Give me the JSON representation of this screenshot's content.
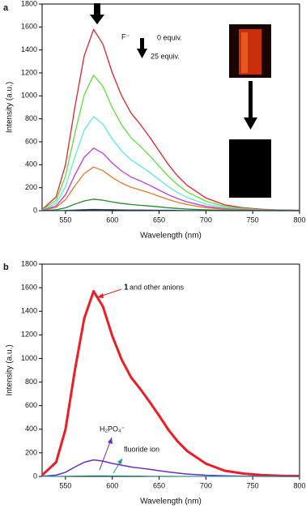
{
  "chart_data": [
    {
      "type": "line",
      "panel_label": "a",
      "x_label": "Wavelength (nm)",
      "y_label": "Intensity (a.u.)",
      "annotations": [
        "F⁻",
        "0 equiv.",
        "25 equiv."
      ],
      "x": [
        525,
        540,
        550,
        560,
        570,
        580,
        590,
        600,
        610,
        620,
        630,
        640,
        650,
        660,
        670,
        680,
        700,
        720,
        740,
        760,
        780,
        800
      ],
      "xlim": [
        525,
        800
      ],
      "xticks": [
        550,
        600,
        650,
        700,
        750,
        800
      ],
      "ylim": [
        0,
        1800
      ],
      "yticks": [
        0,
        200,
        400,
        600,
        800,
        1000,
        1200,
        1400,
        1600,
        1800
      ],
      "series": [
        {
          "color": "#e8202a",
          "values": [
            10,
            120,
            400,
            900,
            1350,
            1580,
            1450,
            1200,
            1000,
            850,
            750,
            640,
            520,
            400,
            300,
            220,
            110,
            50,
            25,
            12,
            6,
            3
          ]
        },
        {
          "color": "#5ee03a",
          "values": [
            7,
            90,
            300,
            672,
            1008,
            1180,
            1083,
            896,
            747,
            635,
            560,
            478,
            388,
            299,
            224,
            164,
            82,
            37,
            19,
            9,
            4,
            2
          ]
        },
        {
          "color": "#5de8e0",
          "values": [
            5,
            62,
            208,
            468,
            702,
            820,
            754,
            624,
            520,
            442,
            390,
            333,
            270,
            208,
            156,
            114,
            57,
            26,
            13,
            6,
            3,
            2
          ]
        },
        {
          "color": "#c03ad8",
          "values": [
            3,
            41,
            138,
            310,
            466,
            545,
            500,
            414,
            345,
            293,
            259,
            221,
            179,
            138,
            104,
            76,
            38,
            17,
            9,
            4,
            2,
            1
          ]
        },
        {
          "color": "#f0742a",
          "values": [
            2,
            29,
            96,
            216,
            324,
            380,
            348,
            288,
            240,
            204,
            180,
            154,
            125,
            96,
            72,
            53,
            26,
            12,
            6,
            3,
            1,
            1
          ]
        },
        {
          "color": "#1f8a2a",
          "values": [
            1,
            8,
            25,
            57,
            85,
            100,
            91,
            76,
            63,
            54,
            47,
            40,
            33,
            25,
            19,
            14,
            7,
            3,
            2,
            1,
            0,
            0
          ]
        },
        {
          "color": "#1a3a5a",
          "values": [
            0,
            1,
            2,
            5,
            8,
            10,
            9,
            8,
            6,
            5,
            5,
            4,
            3,
            3,
            2,
            1,
            1,
            0,
            0,
            0,
            0,
            0
          ]
        }
      ]
    },
    {
      "type": "line",
      "panel_label": "b",
      "x_label": "Wavelength (nm)",
      "y_label": "Intensity (a.u.)",
      "annotations": [
        "1",
        "and other anions",
        "H₂PO₄⁻",
        "fluoride ion"
      ],
      "x": [
        525,
        540,
        550,
        560,
        570,
        580,
        590,
        600,
        610,
        620,
        630,
        640,
        650,
        660,
        670,
        680,
        700,
        720,
        740,
        760,
        780,
        800
      ],
      "xlim": [
        525,
        800
      ],
      "xticks": [
        550,
        600,
        650,
        700,
        750,
        800
      ],
      "ylim": [
        0,
        1800
      ],
      "yticks": [
        0,
        200,
        400,
        600,
        800,
        1000,
        1200,
        1400,
        1600,
        1800
      ],
      "series": [
        {
          "color": "#ee1c24",
          "values": [
            10,
            120,
            400,
            900,
            1340,
            1570,
            1440,
            1190,
            990,
            840,
            740,
            630,
            515,
            395,
            295,
            215,
            108,
            48,
            24,
            11,
            5,
            3
          ]
        },
        {
          "color": "#6a2cc8",
          "values": [
            1,
            11,
            35,
            80,
            120,
            140,
            130,
            110,
            95,
            80,
            70,
            60,
            48,
            38,
            28,
            20,
            10,
            5,
            2,
            1,
            0,
            0
          ]
        },
        {
          "color": "#1aa08a",
          "values": [
            0,
            1,
            2,
            3,
            4,
            5,
            5,
            4,
            4,
            3,
            3,
            2,
            2,
            2,
            1,
            1,
            1,
            0,
            0,
            0,
            0,
            0
          ]
        }
      ]
    }
  ]
}
